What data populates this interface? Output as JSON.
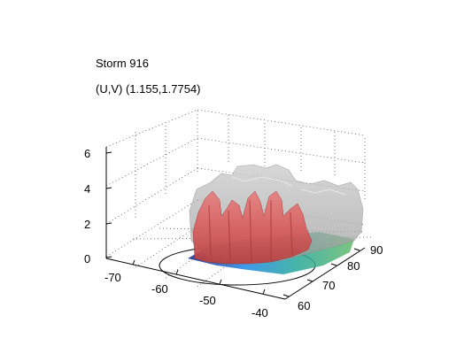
{
  "figure": {
    "title": "Storm 916",
    "subtitle": "(U,V) (1.155,1.7754)"
  },
  "axes": {
    "z_ticks": [
      "6",
      "4",
      "2",
      "0"
    ],
    "x_ticks": [
      "-70",
      "-60",
      "-50",
      "-40"
    ],
    "y_ticks": [
      "60",
      "70",
      "80",
      "90"
    ],
    "grid": "dotted",
    "projection": "3d"
  },
  "surfaces": {
    "outer_isosurface_color": "#a8a8a8",
    "inner_isosurface_color": "#e06464",
    "base_colormap": [
      "#1a237e",
      "#1e88e5",
      "#26a69a",
      "#66bb6a"
    ]
  }
}
